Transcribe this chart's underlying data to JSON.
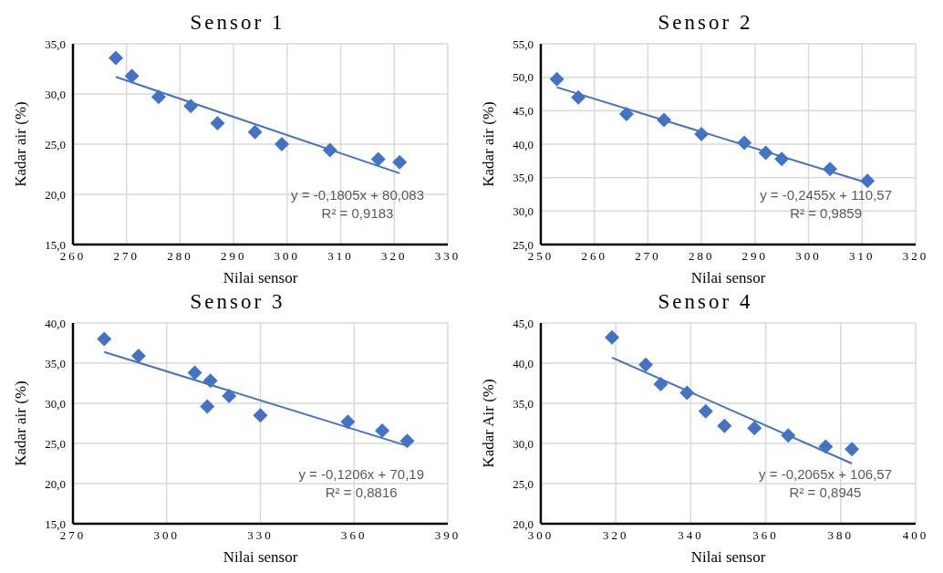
{
  "chart_data": [
    {
      "type": "scatter",
      "title": "Sensor 1",
      "xlabel": "Nilai sensor",
      "ylabel": "Kadar air (%)",
      "annotations": [
        "y = -0,1805x + 80,083",
        "R² = 0,9183"
      ],
      "xlim": [
        260,
        330
      ],
      "xticks": [
        260,
        270,
        280,
        290,
        300,
        310,
        320,
        330
      ],
      "ylim": [
        15,
        35
      ],
      "yticks": [
        {
          "value": 15,
          "label": "15,0"
        },
        {
          "value": 20,
          "label": "20,0"
        },
        {
          "value": 25,
          "label": "25,0"
        },
        {
          "value": 30,
          "label": "30,0"
        },
        {
          "value": 35,
          "label": "35,0"
        }
      ],
      "grid": true,
      "marker": "diamond",
      "series": [
        {
          "type": "scatter",
          "color": "#4472c4",
          "x": [
            268,
            271,
            276,
            282,
            287,
            294,
            299,
            308,
            317,
            321
          ],
          "values": [
            33.6,
            31.8,
            29.7,
            28.8,
            27.1,
            26.2,
            25.0,
            24.4,
            23.5,
            23.2
          ]
        },
        {
          "type": "line",
          "color": "#4472c4",
          "marker": "none",
          "x": [
            268,
            321
          ],
          "values": [
            31.7,
            22.1
          ]
        }
      ]
    },
    {
      "type": "scatter",
      "title": "Sensor 2",
      "xlabel": "Nilai sensor",
      "ylabel": "Kadar air (%)",
      "annotations": [
        "y = -0,2455x + 110,57",
        "R² = 0,9859"
      ],
      "xlim": [
        250,
        320
      ],
      "xticks": [
        250,
        260,
        270,
        280,
        290,
        300,
        310,
        320
      ],
      "ylim": [
        25,
        55
      ],
      "yticks": [
        {
          "value": 25,
          "label": "25,0"
        },
        {
          "value": 30,
          "label": "30,0"
        },
        {
          "value": 35,
          "label": "35,0"
        },
        {
          "value": 40,
          "label": "40,0"
        },
        {
          "value": 45,
          "label": "45,0"
        },
        {
          "value": 50,
          "label": "50,0"
        },
        {
          "value": 55,
          "label": "55,0"
        }
      ],
      "grid": true,
      "marker": "diamond",
      "series": [
        {
          "type": "scatter",
          "color": "#4472c4",
          "x": [
            253,
            257,
            266,
            273,
            280,
            288,
            292,
            295,
            304,
            311
          ],
          "values": [
            49.7,
            47.0,
            44.5,
            43.6,
            41.5,
            40.2,
            38.7,
            37.8,
            36.3,
            34.5
          ]
        },
        {
          "type": "line",
          "color": "#4472c4",
          "marker": "none",
          "x": [
            253,
            311
          ],
          "values": [
            48.5,
            34.2
          ]
        }
      ]
    },
    {
      "type": "scatter",
      "title": "Sensor 3",
      "xlabel": "Nilai sensor",
      "ylabel": "Kadar air (%)",
      "annotations": [
        "y = -0,1206x + 70,19",
        "R² = 0,8816"
      ],
      "xlim": [
        270,
        390
      ],
      "xticks": [
        270,
        300,
        330,
        360,
        390
      ],
      "ylim": [
        15,
        40
      ],
      "yticks": [
        {
          "value": 15,
          "label": "15,0"
        },
        {
          "value": 20,
          "label": "20,0"
        },
        {
          "value": 25,
          "label": "25,0"
        },
        {
          "value": 30,
          "label": "30,0"
        },
        {
          "value": 35,
          "label": "35,0"
        },
        {
          "value": 40,
          "label": "40,0"
        }
      ],
      "grid": true,
      "marker": "diamond",
      "series": [
        {
          "type": "scatter",
          "color": "#4472c4",
          "x": [
            280,
            291,
            309,
            314,
            313,
            320,
            330,
            358,
            369,
            377
          ],
          "values": [
            38.0,
            35.9,
            33.8,
            32.8,
            29.6,
            30.9,
            28.5,
            27.7,
            26.6,
            25.3
          ]
        },
        {
          "type": "line",
          "color": "#4472c4",
          "marker": "none",
          "x": [
            280,
            377
          ],
          "values": [
            36.4,
            24.7
          ]
        }
      ]
    },
    {
      "type": "scatter",
      "title": "Sensor 4",
      "xlabel": "Nilai sensor",
      "ylabel": "Kadar Air (%)",
      "annotations": [
        "y = -0,2065x + 106,57",
        "R² = 0,8945"
      ],
      "xlim": [
        300,
        400
      ],
      "xticks": [
        300,
        320,
        340,
        360,
        380,
        400
      ],
      "ylim": [
        20,
        45
      ],
      "yticks": [
        {
          "value": 20,
          "label": "20,0"
        },
        {
          "value": 25,
          "label": "25,0"
        },
        {
          "value": 30,
          "label": "30,0"
        },
        {
          "value": 35,
          "label": "35,0"
        },
        {
          "value": 40,
          "label": "40,0"
        },
        {
          "value": 45,
          "label": "45,0"
        }
      ],
      "grid": true,
      "marker": "diamond",
      "series": [
        {
          "type": "scatter",
          "color": "#4472c4",
          "x": [
            319,
            328,
            332,
            339,
            344,
            349,
            357,
            366,
            376,
            383
          ],
          "values": [
            43.2,
            39.8,
            37.4,
            36.3,
            34.0,
            32.2,
            31.9,
            31.0,
            29.6,
            29.3
          ]
        },
        {
          "type": "line",
          "color": "#4472c4",
          "marker": "none",
          "x": [
            319,
            383
          ],
          "values": [
            40.7,
            27.5
          ]
        }
      ]
    }
  ]
}
